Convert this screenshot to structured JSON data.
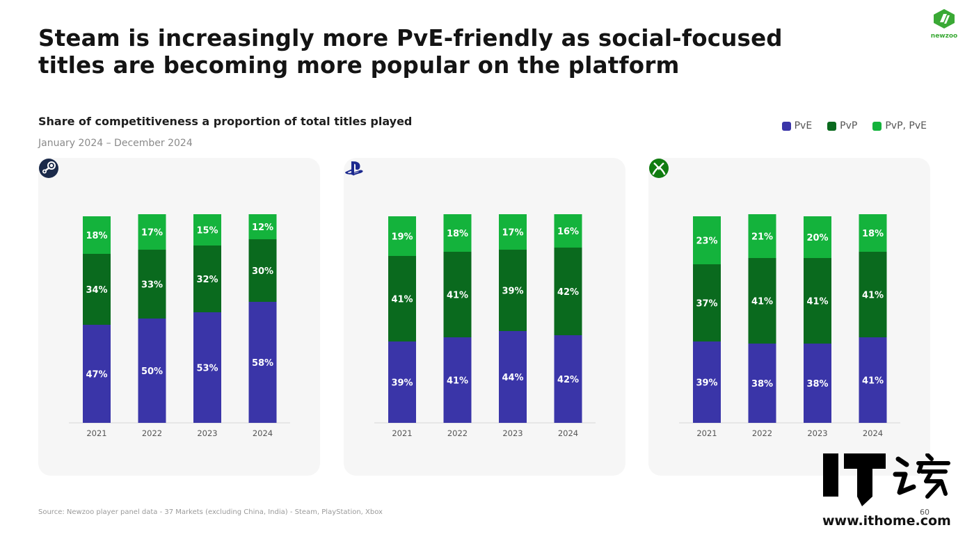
{
  "header": {
    "title_line1": "Steam is increasingly more PvE-friendly as social-focused",
    "title_line2": "titles are becoming more popular on the platform",
    "subtitle": "Share of competitiveness a proportion of total titles played",
    "date_range": "January 2024 – December 2024",
    "brand": "newzoo"
  },
  "legend": [
    {
      "label": "PvE",
      "color": "#3a35a8"
    },
    {
      "label": "PvP",
      "color": "#0a6a1e"
    },
    {
      "label": "PvP, PvE",
      "color": "#14b33c"
    }
  ],
  "colors": {
    "pve": "#3a35a8",
    "pvp": "#0a6a1e",
    "pvp_pve": "#14b33c"
  },
  "platforms": [
    {
      "icon": "steam-icon"
    },
    {
      "icon": "playstation-icon"
    },
    {
      "icon": "xbox-icon"
    }
  ],
  "chart_data": [
    {
      "type": "bar",
      "stacked": true,
      "platform_icon": "steam-icon",
      "categories": [
        "2021",
        "2022",
        "2023",
        "2024"
      ],
      "series": [
        {
          "name": "PvE",
          "values": [
            47,
            50,
            53,
            58
          ],
          "labels": [
            "47%",
            "50%",
            "53%",
            "58%"
          ]
        },
        {
          "name": "PvP",
          "values": [
            34,
            33,
            32,
            30
          ],
          "labels": [
            "34%",
            "33%",
            "32%",
            "30%"
          ]
        },
        {
          "name": "PvP, PvE",
          "values": [
            18,
            17,
            15,
            12
          ],
          "labels": [
            "18%",
            "17%",
            "15%",
            "12%"
          ]
        }
      ],
      "ylim": [
        0,
        100
      ]
    },
    {
      "type": "bar",
      "stacked": true,
      "platform_icon": "playstation-icon",
      "categories": [
        "2021",
        "2022",
        "2023",
        "2024"
      ],
      "series": [
        {
          "name": "PvE",
          "values": [
            39,
            41,
            44,
            42
          ],
          "labels": [
            "39%",
            "41%",
            "44%",
            "42%"
          ]
        },
        {
          "name": "PvP",
          "values": [
            41,
            41,
            39,
            42
          ],
          "labels": [
            "41%",
            "41%",
            "39%",
            "42%"
          ]
        },
        {
          "name": "PvP, PvE",
          "values": [
            19,
            18,
            17,
            16
          ],
          "labels": [
            "19%",
            "18%",
            "17%",
            "16%"
          ]
        }
      ],
      "ylim": [
        0,
        100
      ]
    },
    {
      "type": "bar",
      "stacked": true,
      "platform_icon": "xbox-icon",
      "categories": [
        "2021",
        "2022",
        "2023",
        "2024"
      ],
      "series": [
        {
          "name": "PvE",
          "values": [
            39,
            38,
            38,
            41
          ],
          "labels": [
            "39%",
            "38%",
            "38%",
            "41%"
          ]
        },
        {
          "name": "PvP",
          "values": [
            37,
            41,
            41,
            41
          ],
          "labels": [
            "37%",
            "41%",
            "41%",
            "41%"
          ]
        },
        {
          "name": "PvP, PvE",
          "values": [
            23,
            21,
            20,
            18
          ],
          "labels": [
            "23%",
            "21%",
            "20%",
            "18%"
          ]
        }
      ],
      "ylim": [
        0,
        100
      ]
    }
  ],
  "footer": {
    "source": "Source: Newzoo player panel data - 37 Markets (excluding China, India) - Steam, PlayStation, Xbox",
    "page_number": "60"
  },
  "watermark": {
    "logo_text": "IT之家",
    "url": "www.ithome.com"
  }
}
